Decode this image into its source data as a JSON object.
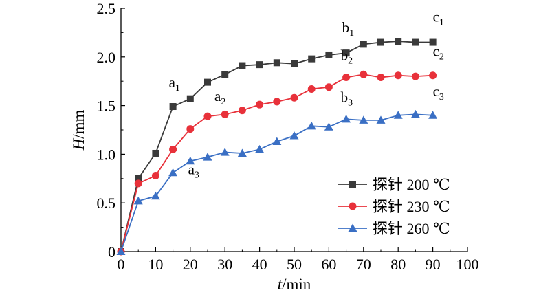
{
  "chart_data": {
    "type": "line",
    "xlabel": {
      "italic": "t",
      "rest": "/min"
    },
    "ylabel": {
      "italic": "H",
      "rest": "/mm"
    },
    "xlim": [
      0,
      100
    ],
    "ylim": [
      0,
      2.5
    ],
    "xticks": [
      "0",
      "10",
      "20",
      "30",
      "40",
      "50",
      "60",
      "70",
      "80",
      "90",
      "100"
    ],
    "yticks": [
      "0",
      "0.5",
      "1.0",
      "1.5",
      "2.0",
      "2.5"
    ],
    "grid": false,
    "legend_position": "bottom-right",
    "series": [
      {
        "name": "探针 200 ℃",
        "color": "#3a3a3a",
        "marker": "square",
        "x": [
          0,
          5,
          10,
          15,
          20,
          25,
          30,
          35,
          40,
          45,
          50,
          55,
          60,
          65,
          70,
          75,
          80,
          85,
          90
        ],
        "y": [
          0,
          0.75,
          1.01,
          1.49,
          1.57,
          1.74,
          1.82,
          1.91,
          1.92,
          1.94,
          1.93,
          1.98,
          2.02,
          2.04,
          2.13,
          2.15,
          2.16,
          2.15,
          2.15
        ]
      },
      {
        "name": "探针 230 ℃",
        "color": "#e8313a",
        "marker": "circle",
        "x": [
          0,
          5,
          10,
          15,
          20,
          25,
          30,
          35,
          40,
          45,
          50,
          55,
          60,
          65,
          70,
          75,
          80,
          85,
          90
        ],
        "y": [
          0,
          0.7,
          0.78,
          1.05,
          1.26,
          1.39,
          1.41,
          1.45,
          1.51,
          1.54,
          1.58,
          1.67,
          1.69,
          1.79,
          1.82,
          1.79,
          1.81,
          1.8,
          1.81
        ]
      },
      {
        "name": "探针 260 ℃",
        "color": "#3a6fc4",
        "marker": "triangle",
        "x": [
          0,
          5,
          10,
          15,
          20,
          25,
          30,
          35,
          40,
          45,
          50,
          55,
          60,
          65,
          70,
          75,
          80,
          85,
          90
        ],
        "y": [
          0,
          0.52,
          0.57,
          0.81,
          0.93,
          0.97,
          1.02,
          1.01,
          1.05,
          1.13,
          1.19,
          1.29,
          1.28,
          1.36,
          1.35,
          1.35,
          1.4,
          1.41,
          1.4
        ]
      }
    ],
    "annotations": [
      {
        "main": "a",
        "sub": "1",
        "x": 15,
        "y": 1.49
      },
      {
        "main": "a",
        "sub": "2",
        "x": 25,
        "y": 1.39
      },
      {
        "main": "a",
        "sub": "3",
        "x": 15,
        "y": 0.81
      },
      {
        "main": "b",
        "sub": "1",
        "x": 65,
        "y": 2.04
      },
      {
        "main": "b",
        "sub": "2",
        "x": 65,
        "y": 1.79
      },
      {
        "main": "b",
        "sub": "3",
        "x": 65,
        "y": 1.36
      },
      {
        "main": "c",
        "sub": "1",
        "x": 90,
        "y": 2.15
      },
      {
        "main": "c",
        "sub": "2",
        "x": 90,
        "y": 1.81
      },
      {
        "main": "c",
        "sub": "3",
        "x": 90,
        "y": 1.4
      }
    ]
  }
}
